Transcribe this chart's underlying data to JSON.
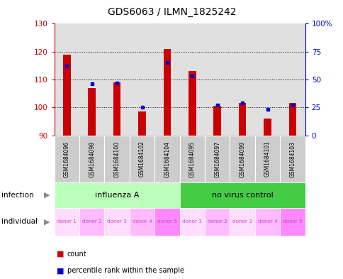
{
  "title": "GDS6063 / ILMN_1825242",
  "samples": [
    "GSM1684096",
    "GSM1684098",
    "GSM1684100",
    "GSM1684102",
    "GSM1684104",
    "GSM1684095",
    "GSM1684097",
    "GSM1684099",
    "GSM1684101",
    "GSM1684103"
  ],
  "counts": [
    119,
    107,
    109,
    98.5,
    121,
    113,
    100.5,
    101.5,
    96,
    101.5
  ],
  "percentiles": [
    62,
    46,
    47,
    25,
    65,
    53,
    27,
    29,
    23,
    27
  ],
  "ylim_left": [
    90,
    130
  ],
  "ylim_right": [
    0,
    100
  ],
  "yticks_left": [
    90,
    100,
    110,
    120,
    130
  ],
  "yticks_right": [
    0,
    25,
    50,
    75,
    100
  ],
  "ytick_labels_right": [
    "0",
    "25",
    "50",
    "75",
    "100%"
  ],
  "bar_color": "#cc0000",
  "dot_color": "#0000cc",
  "bar_bottom": 90,
  "col_bg_color": "#cccccc",
  "infection_color_1": "#bbffbb",
  "infection_color_2": "#44cc44",
  "ind_colors": [
    "#ffddff",
    "#ffbbff",
    "#ffddff",
    "#ffbbff",
    "#ff88ff",
    "#ffddff",
    "#ffbbff",
    "#ffddff",
    "#ffbbff",
    "#ff88ff"
  ],
  "ind_label_color": "#cc44cc",
  "infection_labels": [
    "influenza A",
    "no virus control"
  ],
  "individuals": [
    "donor 1",
    "donor 2",
    "donor 3",
    "donor 4",
    "donor 5",
    "donor 1",
    "donor 2",
    "donor 3",
    "donor 4",
    "donor 5"
  ],
  "left_tick_color": "#cc0000",
  "right_tick_color": "#0000cc",
  "arrow_color": "#888888",
  "grid_dotted_color": "black"
}
